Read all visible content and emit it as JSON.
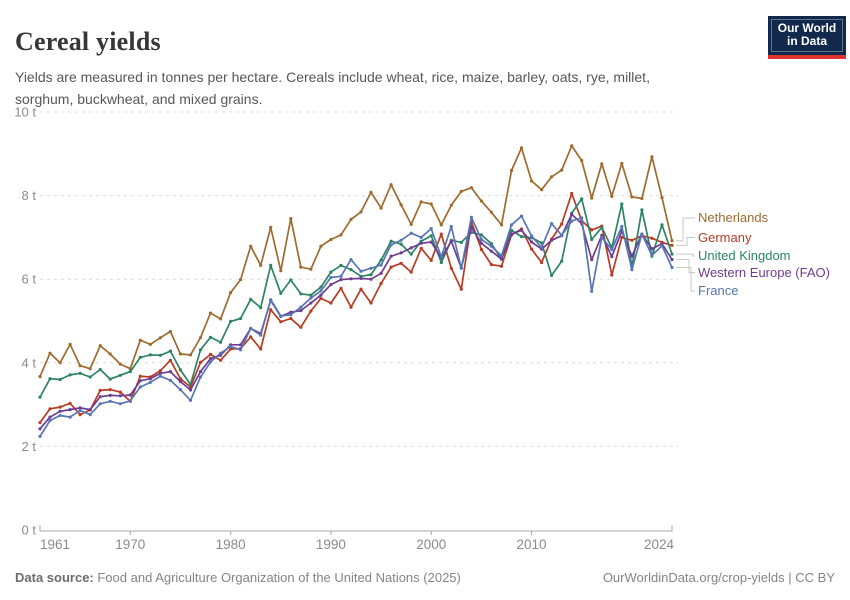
{
  "header": {
    "title": "Cereal yields",
    "subtitle": "Yields are measured in tonnes per hectare. Cereals include wheat, rice, maize, barley, oats, rye, millet, sorghum, buckwheat, and mixed grains.",
    "logo": {
      "line1": "Our World",
      "line2": "in Data"
    }
  },
  "chart_data": {
    "type": "line",
    "x_start": 1961,
    "x_end": 2024,
    "x_step": 1,
    "x_ticks": [
      1961,
      1970,
      1980,
      1990,
      2000,
      2010,
      2024
    ],
    "y_ticks": [
      {
        "value": 0,
        "label": "0 t"
      },
      {
        "value": 2,
        "label": "2 t"
      },
      {
        "value": 4,
        "label": "4 t"
      },
      {
        "value": 6,
        "label": "6 t"
      },
      {
        "value": 8,
        "label": "8 t"
      },
      {
        "value": 10,
        "label": "10 t"
      }
    ],
    "ylim": [
      0,
      10
    ],
    "grid": "dashed-horizontal",
    "legend_position": "right",
    "unit": "tonnes per hectare",
    "series": [
      {
        "name": "Netherlands",
        "color": "#9E6B2E",
        "values": [
          3.67,
          4.23,
          4.0,
          4.44,
          3.93,
          3.86,
          4.41,
          4.21,
          3.97,
          3.86,
          4.54,
          4.44,
          4.6,
          4.75,
          4.21,
          4.19,
          4.6,
          5.19,
          5.05,
          5.68,
          5.99,
          6.79,
          6.33,
          7.24,
          6.2,
          7.45,
          6.29,
          6.24,
          6.79,
          6.95,
          7.06,
          7.43,
          7.61,
          8.08,
          7.7,
          8.26,
          7.78,
          7.31,
          7.85,
          7.8,
          7.3,
          7.77,
          8.1,
          8.19,
          7.87,
          7.6,
          7.3,
          8.6,
          9.14,
          8.35,
          8.14,
          8.45,
          8.61,
          9.19,
          8.84,
          7.94,
          8.76,
          7.98,
          8.77,
          7.97,
          7.93,
          8.93,
          7.95,
          6.92
        ]
      },
      {
        "name": "Germany",
        "color": "#B93B23",
        "values": [
          2.57,
          2.9,
          2.94,
          3.03,
          2.76,
          2.87,
          3.34,
          3.36,
          3.3,
          3.08,
          3.68,
          3.66,
          3.81,
          4.06,
          3.62,
          3.42,
          4.01,
          4.2,
          4.06,
          4.33,
          4.34,
          4.62,
          4.33,
          5.27,
          4.98,
          5.06,
          4.85,
          5.24,
          5.54,
          5.43,
          5.78,
          5.33,
          5.76,
          5.43,
          5.9,
          6.29,
          6.38,
          6.17,
          6.74,
          6.45,
          7.08,
          6.26,
          5.76,
          7.37,
          6.71,
          6.35,
          6.31,
          7.06,
          7.2,
          6.72,
          6.4,
          6.96,
          7.32,
          8.05,
          7.4,
          7.18,
          7.27,
          6.1,
          7.0,
          6.93,
          7.04,
          6.98,
          6.88,
          6.81
        ]
      },
      {
        "name": "United Kingdom",
        "color": "#2C8465",
        "values": [
          3.18,
          3.62,
          3.6,
          3.71,
          3.75,
          3.66,
          3.84,
          3.61,
          3.7,
          3.79,
          4.13,
          4.19,
          4.18,
          4.28,
          3.83,
          3.48,
          4.31,
          4.61,
          4.49,
          4.99,
          5.06,
          5.52,
          5.32,
          6.33,
          5.66,
          5.98,
          5.65,
          5.62,
          5.81,
          6.17,
          6.33,
          6.23,
          6.07,
          6.11,
          6.46,
          6.91,
          6.84,
          6.6,
          6.91,
          7.04,
          6.4,
          6.93,
          6.88,
          7.12,
          7.06,
          6.85,
          6.48,
          7.17,
          7.02,
          6.99,
          6.87,
          6.09,
          6.43,
          7.58,
          7.92,
          6.95,
          7.24,
          6.75,
          7.8,
          6.3,
          7.66,
          6.55,
          7.3,
          6.6
        ]
      },
      {
        "name": "Western Europe (FAO)",
        "color": "#6D3E91",
        "values": [
          2.42,
          2.7,
          2.84,
          2.88,
          2.92,
          2.88,
          3.19,
          3.22,
          3.21,
          3.23,
          3.57,
          3.62,
          3.75,
          3.79,
          3.55,
          3.35,
          3.79,
          4.1,
          4.18,
          4.43,
          4.43,
          4.82,
          4.7,
          5.49,
          5.11,
          5.21,
          5.25,
          5.43,
          5.62,
          5.87,
          5.99,
          6.01,
          6.02,
          6.0,
          6.14,
          6.55,
          6.63,
          6.75,
          6.86,
          6.89,
          6.51,
          6.91,
          6.27,
          7.24,
          6.86,
          6.67,
          6.48,
          7.08,
          7.17,
          6.89,
          6.72,
          6.93,
          7.04,
          7.55,
          7.33,
          6.47,
          7.05,
          6.54,
          7.15,
          6.55,
          7.08,
          6.73,
          6.85,
          6.47
        ]
      },
      {
        "name": "France",
        "color": "#5876B5",
        "values": [
          2.24,
          2.62,
          2.74,
          2.7,
          2.86,
          2.76,
          3.02,
          3.08,
          3.02,
          3.09,
          3.42,
          3.53,
          3.68,
          3.58,
          3.36,
          3.1,
          3.66,
          4.02,
          4.23,
          4.39,
          4.31,
          4.82,
          4.66,
          5.51,
          5.12,
          5.15,
          5.33,
          5.55,
          5.72,
          6.04,
          6.07,
          6.47,
          6.19,
          6.26,
          6.34,
          6.82,
          6.93,
          7.1,
          7.0,
          7.21,
          6.53,
          7.26,
          6.26,
          7.48,
          6.95,
          6.79,
          6.56,
          7.3,
          7.51,
          7.03,
          6.76,
          7.33,
          7.05,
          7.39,
          7.47,
          5.71,
          7.0,
          6.71,
          7.26,
          6.23,
          7.08,
          6.57,
          6.8,
          6.28
        ]
      }
    ],
    "title": "Cereal yields",
    "ylabel": "",
    "xlabel": ""
  },
  "footer": {
    "source_prefix": "Data source:",
    "source_text": " Food and Agriculture Organization of the United Nations (2025)",
    "link": "OurWorldinData.org/crop-yields",
    "separator": " | ",
    "license": "CC BY"
  }
}
